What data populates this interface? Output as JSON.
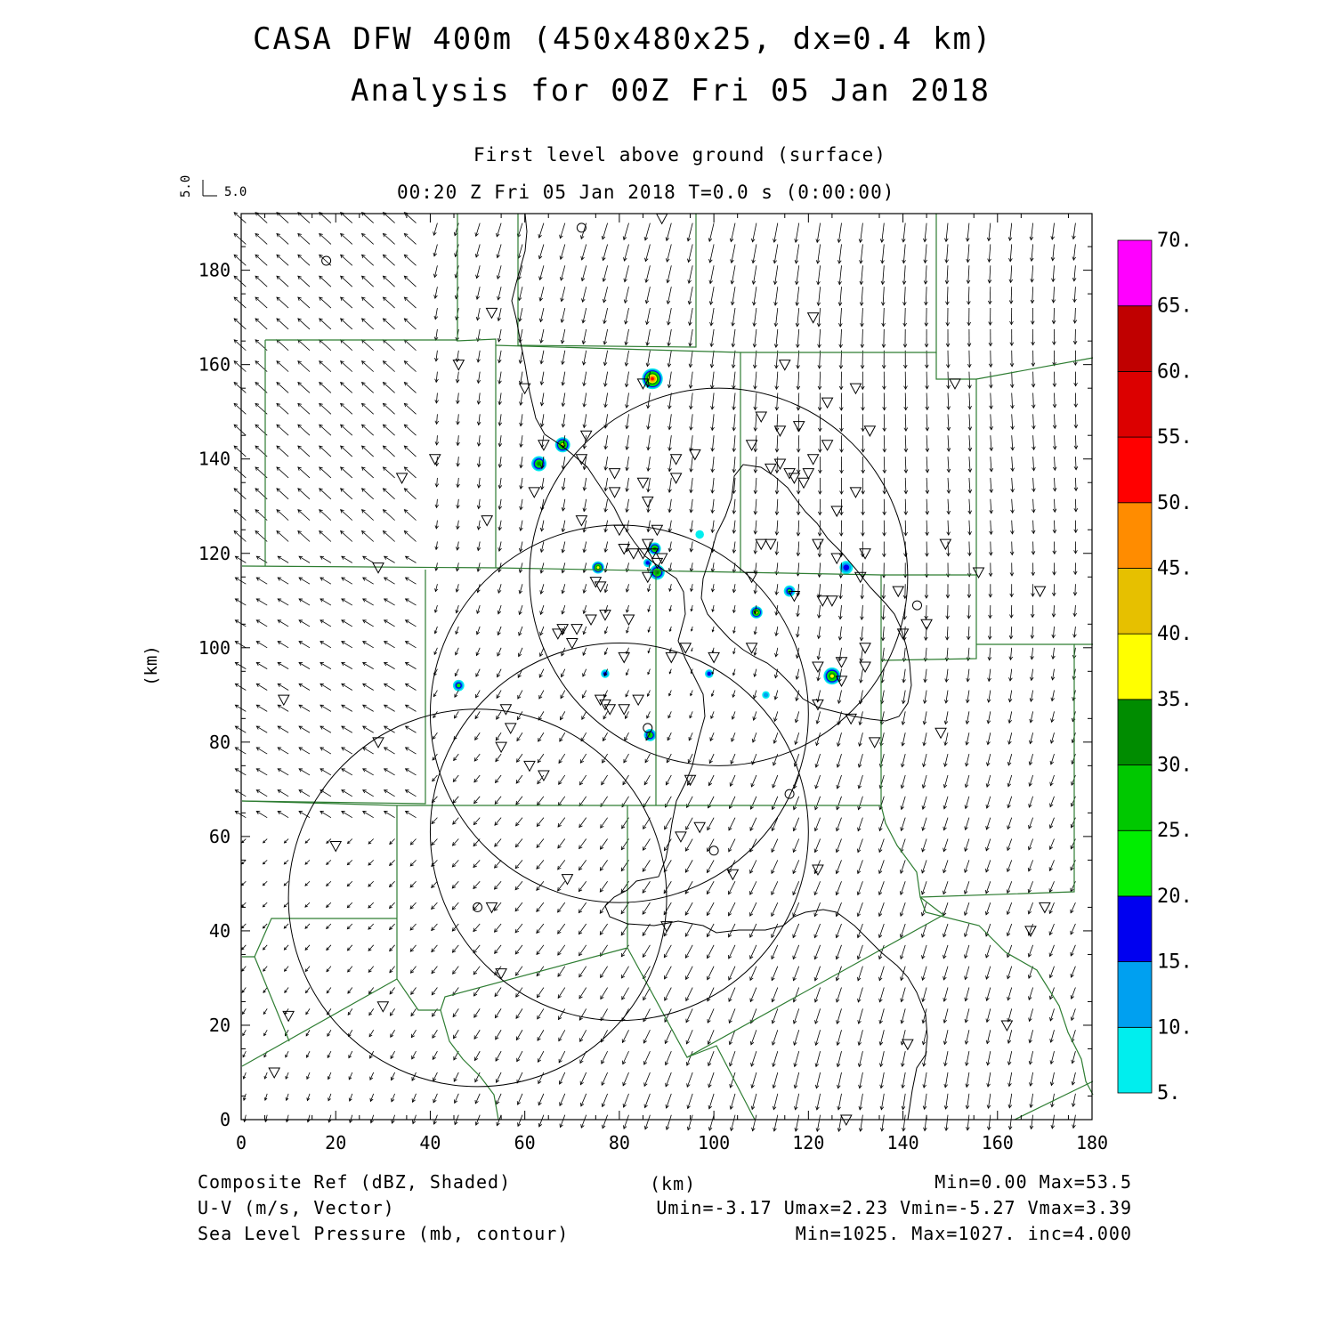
{
  "title": {
    "line1": "CASA DFW 400m (450x480x25, dx=0.4 km)",
    "line2": "Analysis for 00Z Fri 05 Jan 2018"
  },
  "subtitle": {
    "level": "First level above ground (surface)",
    "time": "00:20 Z Fri 05 Jan 2018    T=0.0 s (0:00:00)"
  },
  "vector_key": {
    "u": "5.0",
    "v": "5.0"
  },
  "axes": {
    "x_unit": "(km)",
    "y_unit": "(km)",
    "x_ticks": [
      "0",
      "20",
      "40",
      "60",
      "80",
      "100",
      "120",
      "140",
      "160",
      "180"
    ],
    "y_ticks": [
      "0",
      "20",
      "40",
      "60",
      "80",
      "100",
      "120",
      "140",
      "160",
      "180"
    ],
    "x_range": [
      0,
      180
    ],
    "y_range": [
      0,
      192
    ]
  },
  "colorbar": {
    "labels": [
      "5.",
      "10.",
      "15.",
      "20.",
      "25.",
      "30.",
      "35.",
      "40.",
      "45.",
      "50.",
      "55.",
      "60.",
      "65.",
      "70."
    ],
    "colors": [
      "#00eeee",
      "#00a0f0",
      "#0000f0",
      "#00ee00",
      "#00c800",
      "#008c00",
      "#ffff00",
      "#e6c000",
      "#ff8c00",
      "#ff0000",
      "#dc0000",
      "#c00000",
      "#ff00ff"
    ]
  },
  "footer": {
    "left1": "Composite Ref (dBZ, Shaded)",
    "left2": "U-V (m/s, Vector)",
    "left3": "Sea Level Pressure (mb, contour)",
    "center": "(km)",
    "right1": "Min=0.00 Max=53.5",
    "right2": "Umin=-3.17 Umax=2.23 Vmin=-5.27 Vmax=3.39",
    "right3": "Min=1025. Max=1027. inc=4.000"
  },
  "map_features": {
    "radar_circles_km": [
      {
        "cx": 101,
        "cy": 115,
        "r": 40
      },
      {
        "cx": 80,
        "cy": 86,
        "r": 40
      },
      {
        "cx": 80,
        "cy": 61,
        "r": 40
      },
      {
        "cx": 50,
        "cy": 47,
        "r": 40
      }
    ],
    "echoes_km": [
      {
        "x": 87,
        "y": 157,
        "r": 2.2,
        "max": "#ff0000"
      },
      {
        "x": 68,
        "y": 143,
        "r": 1.6,
        "max": "#ffff00"
      },
      {
        "x": 63,
        "y": 139,
        "r": 1.6,
        "max": "#008c00"
      },
      {
        "x": 87.5,
        "y": 121,
        "r": 1.3,
        "max": "#008c00"
      },
      {
        "x": 88,
        "y": 116,
        "r": 1.6,
        "max": "#008c00"
      },
      {
        "x": 75.5,
        "y": 117,
        "r": 1.3,
        "max": "#ffff00"
      },
      {
        "x": 86,
        "y": 118,
        "r": 0.9,
        "max": "#0000f0"
      },
      {
        "x": 97,
        "y": 124,
        "r": 0.9,
        "max": "#00eeee"
      },
      {
        "x": 109,
        "y": 107.5,
        "r": 1.3,
        "max": "#ffff00"
      },
      {
        "x": 116,
        "y": 112,
        "r": 1.2,
        "max": "#00ee00"
      },
      {
        "x": 128,
        "y": 117,
        "r": 1.4,
        "max": "#0000f0"
      },
      {
        "x": 125,
        "y": 94,
        "r": 1.8,
        "max": "#ffff00"
      },
      {
        "x": 46,
        "y": 92,
        "r": 1.2,
        "max": "#00ee00"
      },
      {
        "x": 77,
        "y": 94.5,
        "r": 0.9,
        "max": "#0000f0"
      },
      {
        "x": 99,
        "y": 94.5,
        "r": 0.9,
        "max": "#0000f0"
      },
      {
        "x": 111,
        "y": 90,
        "r": 0.8,
        "max": "#00a0f0"
      },
      {
        "x": 86.5,
        "y": 81.5,
        "r": 1.3,
        "max": "#00c800"
      }
    ],
    "stations_tri_km": [
      [
        9,
        89
      ],
      [
        20,
        58
      ],
      [
        29,
        80
      ],
      [
        29,
        117
      ],
      [
        34,
        136
      ],
      [
        41,
        140
      ],
      [
        46,
        160
      ],
      [
        52,
        127
      ],
      [
        53,
        171
      ],
      [
        60,
        155
      ],
      [
        62,
        133
      ],
      [
        64,
        143
      ],
      [
        67,
        103
      ],
      [
        68,
        104
      ],
      [
        70,
        101
      ],
      [
        71,
        104
      ],
      [
        72,
        127
      ],
      [
        72,
        140
      ],
      [
        73,
        145
      ],
      [
        74,
        106
      ],
      [
        75,
        114
      ],
      [
        76,
        113
      ],
      [
        77,
        107
      ],
      [
        77,
        88
      ],
      [
        79,
        137
      ],
      [
        79,
        133
      ],
      [
        80,
        125
      ],
      [
        81,
        121
      ],
      [
        81,
        98
      ],
      [
        82,
        106
      ],
      [
        83,
        120
      ],
      [
        84,
        89
      ],
      [
        85,
        156
      ],
      [
        85,
        120
      ],
      [
        85,
        135
      ],
      [
        86,
        122
      ],
      [
        86,
        115
      ],
      [
        86,
        131
      ],
      [
        87,
        120
      ],
      [
        88,
        118
      ],
      [
        88,
        125
      ],
      [
        89,
        119
      ],
      [
        90,
        41
      ],
      [
        91,
        98
      ],
      [
        92,
        140
      ],
      [
        92,
        136
      ],
      [
        93,
        60
      ],
      [
        94,
        100
      ],
      [
        95,
        72
      ],
      [
        96,
        141
      ],
      [
        97,
        62
      ],
      [
        100,
        98
      ],
      [
        104,
        52
      ],
      [
        108,
        100
      ],
      [
        108,
        115
      ],
      [
        108,
        143
      ],
      [
        110,
        149
      ],
      [
        110,
        122
      ],
      [
        112,
        122
      ],
      [
        112,
        138
      ],
      [
        114,
        139
      ],
      [
        114,
        146
      ],
      [
        115,
        160
      ],
      [
        116,
        137
      ],
      [
        117,
        111
      ],
      [
        117,
        136
      ],
      [
        118,
        147
      ],
      [
        119,
        135
      ],
      [
        120,
        137
      ],
      [
        121,
        170
      ],
      [
        121,
        140
      ],
      [
        122,
        122
      ],
      [
        122,
        96
      ],
      [
        122,
        88
      ],
      [
        122,
        53
      ],
      [
        123,
        110
      ],
      [
        124,
        152
      ],
      [
        124,
        143
      ],
      [
        125,
        110
      ],
      [
        126,
        129
      ],
      [
        126,
        119
      ],
      [
        127,
        97
      ],
      [
        127,
        93
      ],
      [
        129,
        85
      ],
      [
        130,
        155
      ],
      [
        130,
        133
      ],
      [
        131,
        115
      ],
      [
        132,
        100
      ],
      [
        132,
        96
      ],
      [
        132,
        120
      ],
      [
        133,
        146
      ],
      [
        134,
        80
      ],
      [
        139,
        112
      ],
      [
        140,
        103
      ],
      [
        141,
        16
      ],
      [
        145,
        105
      ],
      [
        148,
        82
      ],
      [
        149,
        122
      ],
      [
        151,
        156
      ],
      [
        156,
        116
      ],
      [
        162,
        20
      ],
      [
        167,
        40
      ],
      [
        169,
        112
      ],
      [
        170,
        45
      ],
      [
        89,
        191
      ],
      [
        30,
        24
      ],
      [
        10,
        22
      ],
      [
        7,
        10
      ],
      [
        128,
        0
      ],
      [
        55,
        31
      ],
      [
        56,
        87
      ],
      [
        57,
        83
      ],
      [
        55,
        79
      ],
      [
        61,
        75
      ],
      [
        64,
        73
      ],
      [
        69,
        51
      ],
      [
        53,
        45
      ],
      [
        78,
        87
      ],
      [
        81,
        87
      ],
      [
        76,
        89
      ]
    ],
    "stations_circ_km": [
      [
        18,
        182
      ],
      [
        72,
        189
      ],
      [
        86,
        83
      ],
      [
        100,
        57
      ],
      [
        50,
        45
      ],
      [
        116,
        69
      ],
      [
        143,
        109
      ]
    ]
  }
}
